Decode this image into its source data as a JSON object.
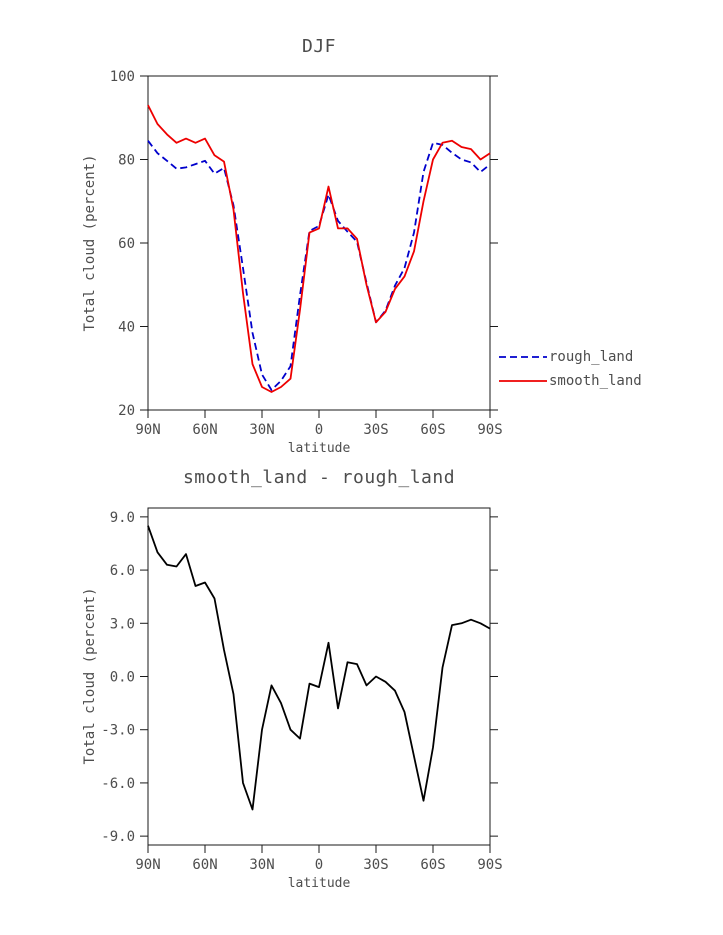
{
  "chart_data": [
    {
      "type": "line",
      "title": "DJF",
      "xlabel": "latitude",
      "ylabel": "Total cloud (percent)",
      "xlim": [
        90,
        -90
      ],
      "ylim": [
        20,
        100
      ],
      "xticks": [
        90,
        60,
        30,
        0,
        -30,
        -60,
        -90
      ],
      "xtick_labels": [
        "90N",
        "60N",
        "30N",
        "0",
        "30S",
        "60S",
        "90S"
      ],
      "yticks": [
        20,
        40,
        60,
        80,
        100
      ],
      "ytick_labels": [
        "20",
        "40",
        "60",
        "80",
        "100"
      ],
      "grid": false,
      "legend_position": "outside-right",
      "x": [
        90,
        85,
        80,
        75,
        70,
        65,
        60,
        55,
        50,
        45,
        40,
        35,
        30,
        25,
        20,
        15,
        10,
        5,
        0,
        -5,
        -10,
        -15,
        -20,
        -25,
        -30,
        -35,
        -40,
        -45,
        -50,
        -55,
        -60,
        -65,
        -70,
        -75,
        -80,
        -85,
        -90
      ],
      "series": [
        {
          "name": "rough_land",
          "color": "#0000cc",
          "line_style": "dashed",
          "values": [
            84.5,
            81.5,
            79.7,
            77.8,
            78.1,
            78.9,
            79.7,
            76.6,
            78.0,
            69.0,
            54.0,
            38.5,
            28.5,
            24.8,
            27.0,
            30.5,
            47.5,
            62.9,
            64.1,
            71.6,
            65.3,
            62.7,
            60.3,
            50.5,
            41.0,
            43.8,
            49.8,
            54.0,
            62.5,
            77.0,
            84.0,
            83.5,
            81.6,
            80.0,
            79.3,
            77.0,
            78.8
          ]
        },
        {
          "name": "smooth_land",
          "color": "#ee0000",
          "line_style": "solid",
          "values": [
            93.0,
            88.5,
            86.0,
            84.0,
            85.0,
            84.0,
            85.0,
            81.0,
            79.5,
            68.0,
            48.0,
            31.0,
            25.5,
            24.3,
            25.5,
            27.5,
            44.0,
            62.5,
            63.5,
            73.5,
            63.5,
            63.5,
            61.0,
            50.0,
            41.0,
            43.5,
            49.0,
            52.0,
            58.0,
            70.0,
            80.0,
            84.0,
            84.5,
            83.0,
            82.5,
            80.0,
            81.5
          ]
        }
      ]
    },
    {
      "type": "line",
      "title": "smooth_land - rough_land",
      "xlabel": "latitude",
      "ylabel": "Total cloud (percent)",
      "xlim": [
        90,
        -90
      ],
      "ylim": [
        -9.5,
        9.5
      ],
      "xticks": [
        90,
        60,
        30,
        0,
        -30,
        -60,
        -90
      ],
      "xtick_labels": [
        "90N",
        "60N",
        "30N",
        "0",
        "30S",
        "60S",
        "90S"
      ],
      "yticks": [
        -9,
        -6,
        -3,
        0,
        3,
        6,
        9
      ],
      "ytick_labels": [
        "-9.0",
        "-6.0",
        "-3.0",
        "0.0",
        "3.0",
        "6.0",
        "9.0"
      ],
      "grid": false,
      "legend_position": "none",
      "x": [
        90,
        85,
        80,
        75,
        70,
        65,
        60,
        55,
        50,
        45,
        40,
        35,
        30,
        25,
        20,
        15,
        10,
        5,
        0,
        -5,
        -10,
        -15,
        -20,
        -25,
        -30,
        -35,
        -40,
        -45,
        -50,
        -55,
        -60,
        -65,
        -70,
        -75,
        -80,
        -85,
        -90
      ],
      "series": [
        {
          "name": "smooth_land - rough_land",
          "color": "#000000",
          "line_style": "solid",
          "values": [
            8.5,
            7.0,
            6.3,
            6.2,
            6.9,
            5.1,
            5.3,
            4.4,
            1.5,
            -1.0,
            -6.0,
            -7.5,
            -3.0,
            -0.5,
            -1.5,
            -3.0,
            -3.5,
            -0.4,
            -0.6,
            1.9,
            -1.8,
            0.8,
            0.7,
            -0.5,
            0.0,
            -0.3,
            -0.8,
            -2.0,
            -4.5,
            -7.0,
            -4.0,
            0.5,
            2.9,
            3.0,
            3.2,
            3.0,
            2.7
          ]
        }
      ]
    }
  ],
  "colors": {
    "axis": "#1a1a1a",
    "text": "#4d4d4d",
    "rough_land": "#0000cc",
    "smooth_land": "#ee0000",
    "difference": "#000000"
  }
}
